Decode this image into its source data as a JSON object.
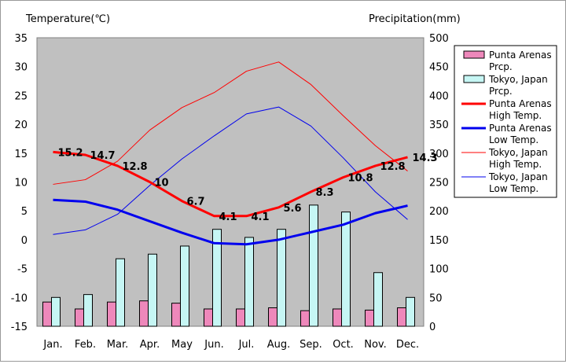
{
  "chart_data": {
    "type": "bar+line",
    "title": "",
    "categories": [
      "Jan.",
      "Feb.",
      "Mar.",
      "Apr.",
      "May",
      "Jun.",
      "Jul.",
      "Aug.",
      "Sep.",
      "Oct.",
      "Nov.",
      "Dec."
    ],
    "y_left": {
      "label": "Temperature(℃)",
      "range": [
        -15,
        35
      ],
      "ticks": [
        35,
        30,
        25,
        20,
        15,
        10,
        5,
        0,
        -5,
        -10,
        -15
      ]
    },
    "y_right": {
      "label": "Precipitation(mm)",
      "range": [
        0,
        500
      ],
      "ticks": [
        500,
        450,
        400,
        350,
        300,
        250,
        200,
        150,
        100,
        50,
        0
      ]
    },
    "bar_series": [
      {
        "name": "Punta Arenas Prcp.",
        "legend_lines": [
          "Punta Arenas",
          "Prcp."
        ],
        "color": "#ee88bb",
        "values": [
          42,
          30,
          42,
          44,
          40,
          30,
          30,
          32,
          27,
          30,
          28,
          32
        ]
      },
      {
        "name": "Tokyo, Japan Prcp.",
        "legend_lines": [
          "Tokyo, Japan",
          "Prcp."
        ],
        "color": "#c6f6f4",
        "values": [
          50,
          55,
          117,
          125,
          139,
          168,
          154,
          168,
          210,
          198,
          93,
          50
        ]
      }
    ],
    "line_series": [
      {
        "name": "Punta Arenas High Temp.",
        "legend_lines": [
          "Punta Arenas",
          "High Temp."
        ],
        "color": "#ff0000",
        "width": 3,
        "values": [
          15.2,
          14.7,
          12.8,
          10,
          6.7,
          4.1,
          4.1,
          5.6,
          8.3,
          10.8,
          12.8,
          14.3
        ],
        "labels": [
          "15.2",
          "14.7",
          "12.8",
          "10",
          "6.7",
          "4.1",
          "4.1",
          "5.6",
          "8.3",
          "10.8",
          "12.8",
          "14.3"
        ]
      },
      {
        "name": "Punta Arenas Low Temp.",
        "legend_lines": [
          "Punta Arenas",
          "Low Temp."
        ],
        "color": "#0000ee",
        "width": 3,
        "values": [
          6.9,
          6.6,
          5.2,
          3.2,
          1.2,
          -0.6,
          -0.8,
          0,
          1.3,
          2.6,
          4.6,
          5.9
        ]
      },
      {
        "name": "Tokyo, Japan High Temp.",
        "legend_lines": [
          "Tokyo, Japan",
          "High Temp."
        ],
        "color": "#ff0000",
        "width": 1,
        "values": [
          9.6,
          10.4,
          13.6,
          19,
          22.9,
          25.5,
          29.2,
          30.8,
          26.9,
          21.5,
          16.3,
          11.9
        ]
      },
      {
        "name": "Tokyo, Japan Low Temp.",
        "legend_lines": [
          "Tokyo, Japan",
          "Low Temp."
        ],
        "color": "#0000ee",
        "width": 1,
        "values": [
          0.9,
          1.7,
          4.4,
          9.4,
          14,
          18,
          21.8,
          23,
          19.7,
          14.2,
          8.3,
          3.5
        ]
      }
    ],
    "legend_position": "right",
    "grid": false,
    "plot_background": "#c0c0c0"
  }
}
